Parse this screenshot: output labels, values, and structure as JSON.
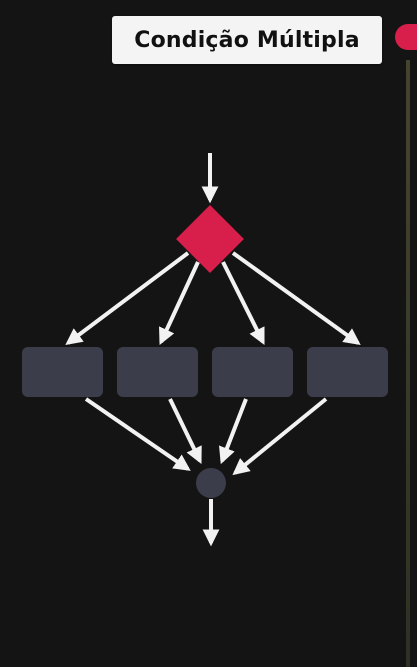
{
  "title": "Condição Múltipla",
  "colors": {
    "background": "#141414",
    "decision": "#d81f4b",
    "box": "#3c3d4a",
    "arrow": "#f2f2f2",
    "title_bg": "#f4f4f4"
  },
  "diagram": {
    "decision_shape": "diamond",
    "branch_count": 4,
    "merge_shape": "circle"
  }
}
